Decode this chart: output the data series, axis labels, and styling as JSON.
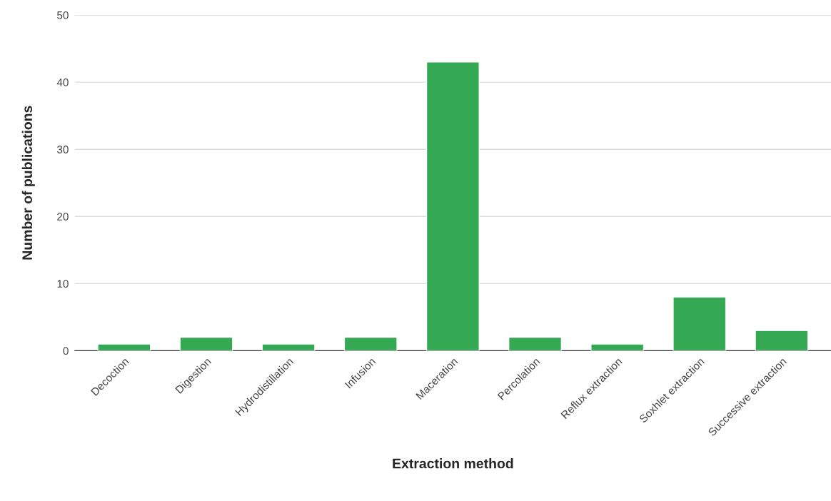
{
  "chart_data": {
    "type": "bar",
    "categories": [
      "Decoction",
      "Digestion",
      "Hydrodistillation",
      "Infusion",
      "Maceration",
      "Percolation",
      "Reflux extraction",
      "Soxhlet extraction",
      "Successive extraction"
    ],
    "values": [
      1,
      2,
      1,
      2,
      43,
      2,
      1,
      8,
      3
    ],
    "color": "#34a853",
    "xlabel": "Extraction method",
    "ylabel": "Number of publications",
    "ylim": [
      0,
      50
    ],
    "yticks": [
      0,
      10,
      20,
      30,
      40,
      50
    ],
    "grid": "y"
  }
}
